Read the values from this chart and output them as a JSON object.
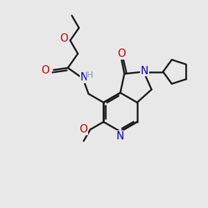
{
  "bg_color": "#e8e8e8",
  "line_color": "#1a1a1a",
  "N_color": "#0000cc",
  "O_color": "#cc0000",
  "H_color": "#7a9a9a",
  "bond_lw": 1.8,
  "font_size": 10,
  "fig_size": [
    3.0,
    3.0
  ],
  "dpi": 100,
  "xlim": [
    0,
    10
  ],
  "ylim": [
    0,
    10
  ]
}
